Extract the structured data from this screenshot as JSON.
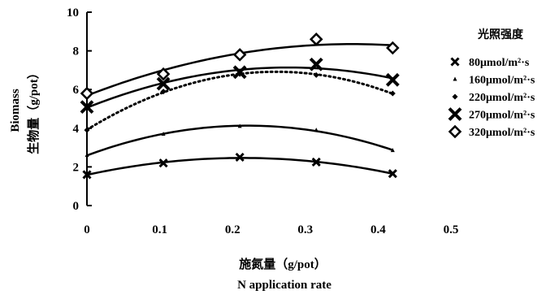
{
  "chart_data": {
    "type": "scatter",
    "title": "",
    "xlabel_cn": "施氮量（g/pot）",
    "xlabel": "N application rate",
    "ylabel": "Biomass",
    "ylabel_cn": "生物量（g/pot）",
    "xlim": [
      0,
      0.5
    ],
    "ylim": [
      0,
      10
    ],
    "x_ticks": [
      "0",
      "0.1",
      "0.2",
      "0.3",
      "0.4",
      "0.5"
    ],
    "y_ticks": [
      "0",
      "2",
      "4",
      "6",
      "8",
      "10"
    ],
    "legend_title": "光照强度",
    "legend_position": "right",
    "grid": false,
    "x": [
      0,
      0.105,
      0.21,
      0.315,
      0.42
    ],
    "series": [
      {
        "name": "80μmol/m²·s",
        "marker": "x",
        "line": "solid",
        "values": [
          1.6,
          2.2,
          2.5,
          2.25,
          1.65
        ]
      },
      {
        "name": "160μmol/m²·s",
        "marker": "triangle",
        "line": "solid",
        "values": [
          2.6,
          3.7,
          4.1,
          3.9,
          2.85
        ]
      },
      {
        "name": "220μmol/m²·s",
        "marker": "diamond-small",
        "line": "dotted",
        "values": [
          3.9,
          5.9,
          6.8,
          6.75,
          5.8
        ]
      },
      {
        "name": "270μmol/m²·s",
        "marker": "x-large",
        "line": "solid",
        "values": [
          5.1,
          6.3,
          6.9,
          7.3,
          6.5
        ]
      },
      {
        "name": "320μmol/m²·s",
        "marker": "diamond-open",
        "line": "solid",
        "values": [
          5.8,
          6.8,
          7.8,
          8.6,
          8.15
        ]
      }
    ]
  }
}
